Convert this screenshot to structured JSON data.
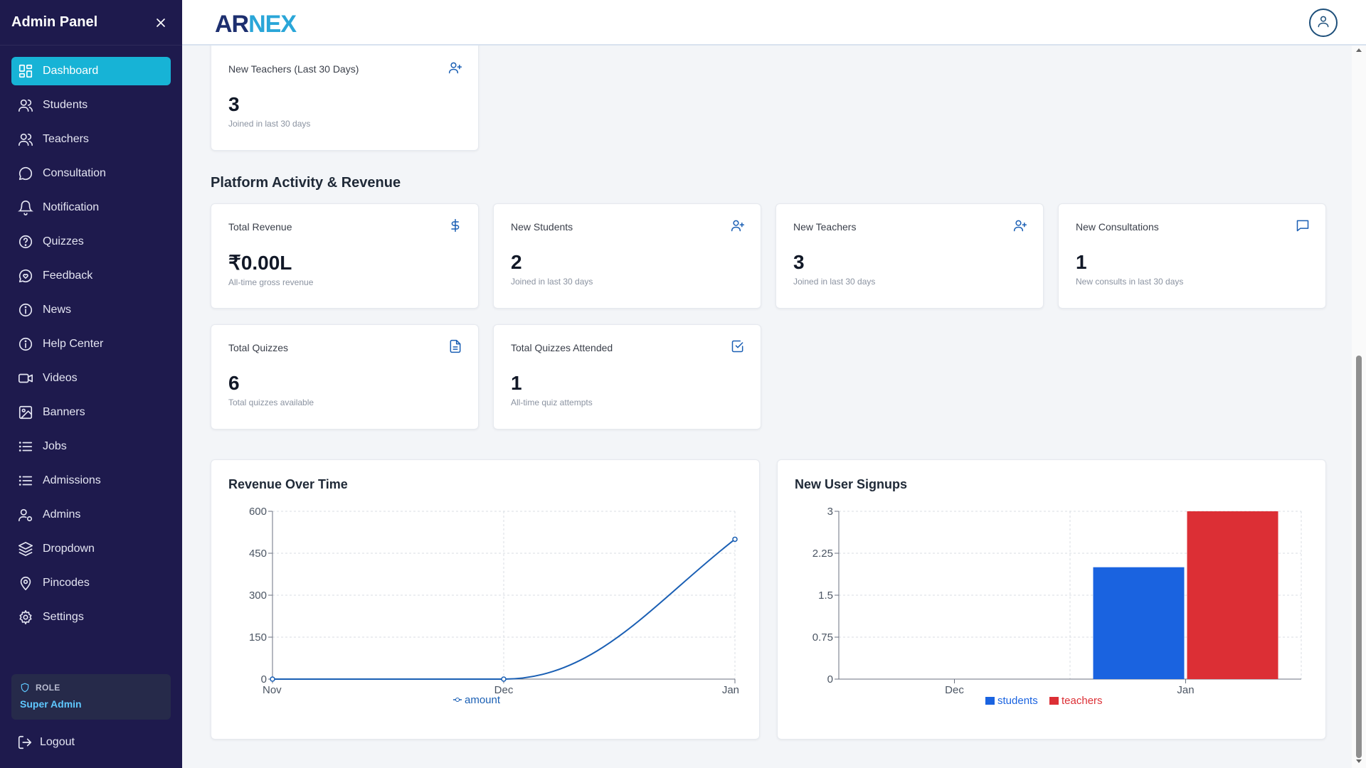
{
  "sidebar": {
    "title": "Admin Panel",
    "items": [
      {
        "label": "Dashboard",
        "icon": "dashboard-icon"
      },
      {
        "label": "Students",
        "icon": "users-icon"
      },
      {
        "label": "Teachers",
        "icon": "users-icon"
      },
      {
        "label": "Consultation",
        "icon": "chat-bubble-icon"
      },
      {
        "label": "Notification",
        "icon": "bell-icon"
      },
      {
        "label": "Quizzes",
        "icon": "help-circle-icon"
      },
      {
        "label": "Feedback",
        "icon": "heart-message-icon"
      },
      {
        "label": "News",
        "icon": "info-icon"
      },
      {
        "label": "Help Center",
        "icon": "info-icon"
      },
      {
        "label": "Videos",
        "icon": "video-icon"
      },
      {
        "label": "Banners",
        "icon": "image-icon"
      },
      {
        "label": "Jobs",
        "icon": "list-icon"
      },
      {
        "label": "Admissions",
        "icon": "list-icon"
      },
      {
        "label": "Admins",
        "icon": "user-cog-icon"
      },
      {
        "label": "Dropdown",
        "icon": "layers-icon"
      },
      {
        "label": "Pincodes",
        "icon": "map-pin-icon"
      },
      {
        "label": "Settings",
        "icon": "gear-icon"
      }
    ],
    "active_item": "Dashboard",
    "role_label": "ROLE",
    "role_value": "Super Admin",
    "logout_label": "Logout"
  },
  "header": {
    "logo_part1": "AR",
    "logo_part2": "NEX"
  },
  "top_card": {
    "title": "New Teachers (Last 30 Days)",
    "value": "3",
    "sub": "Joined in last 30 days",
    "icon": "user-plus-icon"
  },
  "section": {
    "title": "Platform Activity & Revenue"
  },
  "stats": [
    {
      "title": "Total Revenue",
      "value": "₹0.00L",
      "sub": "All-time gross revenue",
      "icon": "dollar-icon"
    },
    {
      "title": "New Students",
      "value": "2",
      "sub": "Joined in last 30 days",
      "icon": "user-plus-icon"
    },
    {
      "title": "New Teachers",
      "value": "3",
      "sub": "Joined in last 30 days",
      "icon": "user-plus-icon"
    },
    {
      "title": "New Consultations",
      "value": "1",
      "sub": "New consults in last 30 days",
      "icon": "message-square-icon"
    },
    {
      "title": "Total Quizzes",
      "value": "6",
      "sub": "Total quizzes available",
      "icon": "file-text-icon"
    },
    {
      "title": "Total Quizzes Attended",
      "value": "1",
      "sub": "All-time quiz attempts",
      "icon": "check-square-icon"
    }
  ],
  "colors": {
    "sidebar_bg": "#1e1a4d",
    "active": "#17b3d6",
    "accent_blue": "#1a5fb4",
    "students": "#1a63e0",
    "teachers": "#dc2f35"
  },
  "chart_data": [
    {
      "type": "line",
      "title": "Revenue Over Time",
      "x": [
        "Nov",
        "Dec",
        "Jan"
      ],
      "series": [
        {
          "name": "amount",
          "values": [
            0,
            0,
            500
          ]
        }
      ],
      "ylim": [
        0,
        600
      ],
      "yticks": [
        0,
        150,
        300,
        450,
        600
      ],
      "grid": true,
      "legend": "bottom"
    },
    {
      "type": "bar",
      "title": "New User Signups",
      "categories": [
        "Dec",
        "Jan"
      ],
      "series": [
        {
          "name": "students",
          "values": [
            0,
            2
          ]
        },
        {
          "name": "teachers",
          "values": [
            0,
            3
          ]
        }
      ],
      "ylim": [
        0,
        3
      ],
      "yticks": [
        0,
        0.75,
        1.5,
        2.25,
        3
      ],
      "grid": true,
      "legend": "bottom"
    }
  ]
}
